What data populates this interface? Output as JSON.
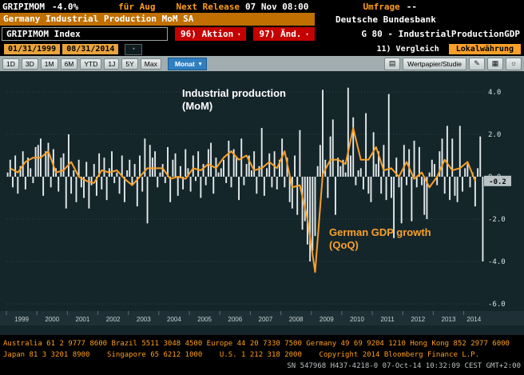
{
  "quote_bar": {
    "ticker": "GRIPIMOM",
    "value": "-4.0%",
    "period": "für Aug",
    "next_release_label": "Next Release",
    "next_release_value": "07 Nov 08:00",
    "survey_label": "Umfrage",
    "survey_value": "--"
  },
  "title_bar": {
    "security_name": "Germany Industrial Production MoM SA",
    "source": "Deutsche Bundesbank"
  },
  "command_bar": {
    "security_field": "GRIPIMOM Index",
    "actions_button": "96) Aktion",
    "edit_button": "97) Änd.",
    "chart_id": "G 80 - IndustrialProductionGDP"
  },
  "range_bar": {
    "start_date": "01/31/1999",
    "end_date": "08/31/2014",
    "compare_button": "11) Vergleich",
    "currency_tab": "Lokalwährung"
  },
  "toolbar": {
    "periods": [
      "1D",
      "3D",
      "1M",
      "6M",
      "YTD",
      "1J",
      "5Y",
      "Max"
    ],
    "frequency": "Monat",
    "study_button": "Wertpapier/Studie"
  },
  "icons": {
    "dropdown_arrow": "▾",
    "rows": "▤",
    "pencil": "✎",
    "grid": "▦",
    "sun": "☼"
  },
  "chart_data": {
    "type": "bar+line",
    "background": "#15262b",
    "ylim": [
      -6.9,
      4.6
    ],
    "y_ticks": [
      4,
      2,
      0,
      -2,
      -4,
      -6
    ],
    "grid": "horizontal-dotted",
    "legend_position": "in-chart-annotations",
    "last_value_badge": "-0.2",
    "x_labels": [
      "1999",
      "2000",
      "2001",
      "2002",
      "2003",
      "2004",
      "2005",
      "2006",
      "2007",
      "2008",
      "2009",
      "2010",
      "2011",
      "2012",
      "2013",
      "2014"
    ],
    "months_per_year": [
      12,
      12,
      12,
      12,
      12,
      12,
      12,
      12,
      12,
      12,
      12,
      12,
      12,
      12,
      12,
      8
    ],
    "bar_series": {
      "name": "Industrial production (MoM)",
      "color": "#e3eaeb",
      "frequency": "monthly",
      "start": "1999-01",
      "end": "2014-08",
      "values": [
        0.2,
        0.8,
        -0.5,
        1.0,
        -0.8,
        0.5,
        1.2,
        -0.6,
        0.9,
        0.4,
        -0.3,
        1.4,
        1.5,
        1.8,
        -0.9,
        1.2,
        1.6,
        -0.5,
        1.3,
        0.4,
        -0.7,
        0.9,
        1.1,
        -1.5,
        2.0,
        -0.8,
        0.3,
        -1.2,
        0.8,
        -0.5,
        -1.0,
        0.7,
        -1.5,
        -0.4,
        0.6,
        -0.9,
        1.1,
        -0.6,
        0.9,
        -1.1,
        0.4,
        1.2,
        -0.3,
        0.2,
        -0.8,
        1.0,
        -1.2,
        0.3,
        0.8,
        -0.4,
        0.6,
        -1.4,
        1.0,
        -0.7,
        1.8,
        -2.2,
        1.5,
        0.9,
        1.2,
        -0.5,
        0.2,
        0.6,
        -0.3,
        1.4,
        -1.2,
        0.8,
        1.1,
        -0.9,
        0.5,
        -0.6,
        1.3,
        0.4,
        -0.7,
        1.0,
        -0.2,
        1.2,
        -1.0,
        0.6,
        -0.4,
        1.3,
        1.6,
        -0.8,
        0.9,
        0.2,
        0.4,
        0.8,
        -0.3,
        1.7,
        -0.5,
        1.3,
        0.9,
        -1.1,
        1.8,
        -0.4,
        0.6,
        1.0,
        0.3,
        1.2,
        -0.8,
        0.5,
        2.3,
        -0.9,
        0.4,
        1.1,
        -0.5,
        1.2,
        -0.6,
        0.8,
        1.8,
        -0.5,
        0.9,
        -1.2,
        -1.5,
        1.0,
        -1.8,
        2.2,
        -2.5,
        -2.1,
        -3.2,
        -4.0,
        -3.5,
        -2.8,
        0.5,
        1.5,
        4.1,
        0.8,
        -1.0,
        1.9,
        2.7,
        -1.8,
        0.9,
        0.5,
        0.8,
        0.2,
        4.2,
        1.0,
        2.8,
        -0.4,
        0.3,
        0.4,
        -0.6,
        3.0,
        -0.8,
        -1.2,
        2.1,
        0.6,
        1.2,
        -0.8,
        1.5,
        -1.1,
        3.9,
        -1.0,
        -2.9,
        0.9,
        -0.5,
        -2.2,
        1.5,
        -0.4,
        1.3,
        -2.1,
        1.7,
        -0.5,
        1.4,
        -0.4,
        -1.8,
        -2.0,
        0.2,
        0.8,
        0.6,
        -0.4,
        1.2,
        1.8,
        -0.8,
        2.4,
        -1.1,
        1.8,
        -0.9,
        -1.2,
        2.4,
        -0.7,
        0.4,
        0.6,
        -0.5,
        0.2,
        -1.4,
        0.4,
        1.9,
        -4.0
      ]
    },
    "line_series": {
      "name": "German GDP growth (QoQ)",
      "color": "#f8a02a",
      "frequency": "quarterly",
      "start": "1999-Q1",
      "end": "2014-Q2",
      "values": [
        0.4,
        0.2,
        0.7,
        0.9,
        0.9,
        1.2,
        0.2,
        0.3,
        0.7,
        0.0,
        -0.2,
        -0.3,
        0.3,
        0.2,
        0.3,
        -0.1,
        -0.4,
        0.0,
        0.4,
        0.4,
        0.4,
        -0.1,
        0.0,
        -0.1,
        0.4,
        0.3,
        0.6,
        0.4,
        0.9,
        1.2,
        0.8,
        1.0,
        0.3,
        0.4,
        0.7,
        0.4,
        1.2,
        -0.5,
        -0.4,
        -2.0,
        -4.5,
        0.1,
        0.8,
        0.8,
        0.6,
        2.3,
        0.8,
        0.8,
        1.4,
        0.3,
        0.4,
        0.0,
        0.7,
        -0.1,
        0.2,
        -0.5,
        0.0,
        0.8,
        0.3,
        0.4,
        0.7,
        -0.2
      ]
    },
    "annotations": [
      {
        "lines": [
          "Industrial production",
          "(MoM)"
        ],
        "color": "#ffffff",
        "x": 228,
        "y": 32
      },
      {
        "lines": [
          "German GDP growth",
          "(QoQ)"
        ],
        "color": "#f8a02a",
        "x": 412,
        "y": 206
      }
    ]
  },
  "footer": {
    "line1": "Australia 61 2 9777 8600 Brazil 5511 3048 4500 Europe 44 20 7330 7500 Germany 49 69 9204 1210 Hong Kong 852 2977 6000",
    "line2": "Japan 81 3 3201 8900    Singapore 65 6212 1000    U.S. 1 212 318 2000    Copyright 2014 Bloomberg Finance L.P.",
    "line3": "SN 547968 H437-4218-0 07-Oct-14 10:32:09 CEST GMT+2:00"
  }
}
